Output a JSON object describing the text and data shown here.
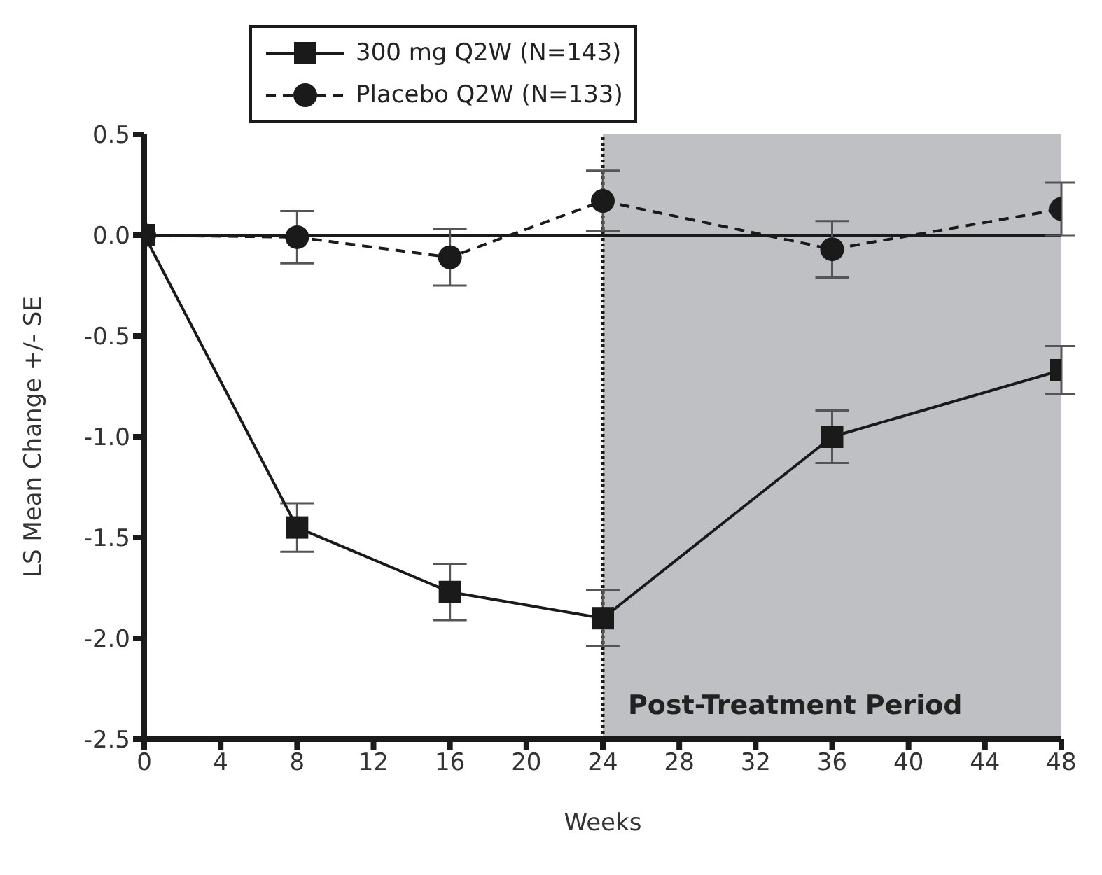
{
  "chart_data": {
    "type": "line",
    "xlabel": "Weeks",
    "ylabel": "LS Mean Change +/- SE",
    "x": [
      0,
      8,
      16,
      24,
      36,
      48
    ],
    "series": [
      {
        "name": "300 mg Q2W (N=143)",
        "color": "#1a1a1a",
        "marker": "square",
        "line_style": "solid",
        "values": [
          0,
          -1.45,
          -1.77,
          -1.9,
          -1.0,
          -0.67
        ],
        "errors": [
          null,
          0.12,
          0.14,
          0.14,
          0.13,
          0.12
        ]
      },
      {
        "name": "Placebo Q2W (N=133)",
        "color": "#1a1a1a",
        "marker": "circle",
        "line_style": "dashed",
        "values": [
          0,
          -0.01,
          -0.11,
          0.17,
          -0.07,
          0.13
        ],
        "errors": [
          null,
          0.13,
          0.14,
          0.15,
          0.14,
          0.13
        ]
      }
    ],
    "xlim": [
      0,
      48
    ],
    "xticks": [
      0,
      4,
      8,
      12,
      16,
      20,
      24,
      28,
      32,
      36,
      40,
      44,
      48
    ],
    "ylim": [
      -2.5,
      0.5
    ],
    "yticks": [
      {
        "value": -2.5,
        "label": "-2.5"
      },
      {
        "value": -2,
        "label": "-2.0"
      },
      {
        "value": -1.5,
        "label": "-1.5"
      },
      {
        "value": -1,
        "label": "-1.0"
      },
      {
        "value": -0.5,
        "label": "-0.5"
      },
      {
        "value": 0,
        "label": "0.0"
      },
      {
        "value": 0.5,
        "label": "0.5"
      }
    ],
    "bands": [
      {
        "axis": "x",
        "from": 24,
        "to": 48,
        "label": "Post-Treatment Period",
        "color": "#bfc0c3"
      }
    ],
    "ref_lines": [
      {
        "axis": "x",
        "value": 24,
        "line_style": "dotted",
        "color": "#1a1a1a"
      },
      {
        "axis": "y",
        "value": 0,
        "line_style": "solid",
        "color": "#1a1a1a"
      }
    ],
    "grid": false,
    "legend": "top left"
  }
}
